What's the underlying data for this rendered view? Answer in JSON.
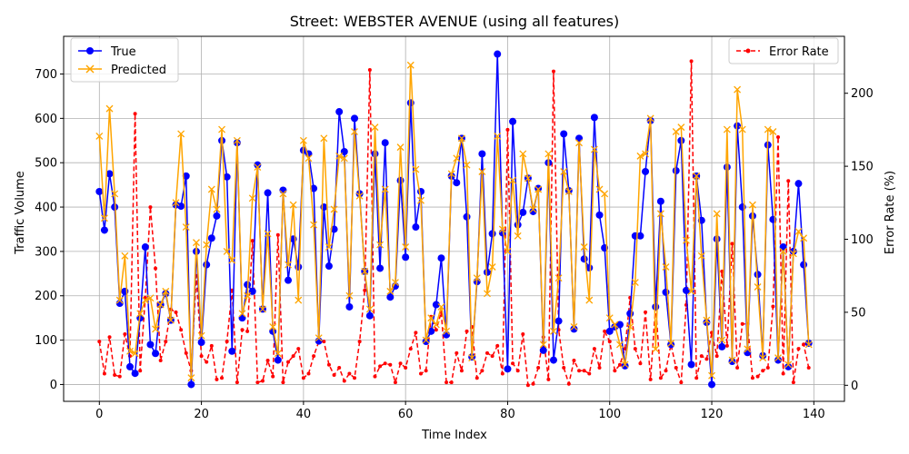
{
  "chart_data": {
    "type": "line",
    "title": "Street: WEBSTER AVENUE (using all features)",
    "xlabel": "Time Index",
    "ylabel": "Traffic Volume",
    "y2label": "Error Rate (%)",
    "xlim": [
      -7,
      146
    ],
    "ylim": [
      -38,
      785
    ],
    "y2lim": [
      -11,
      239
    ],
    "xticks": [
      0,
      20,
      40,
      60,
      80,
      100,
      120,
      140
    ],
    "yticks": [
      0,
      100,
      200,
      300,
      400,
      500,
      600,
      700
    ],
    "y2ticks": [
      0,
      50,
      100,
      150,
      200
    ],
    "grid": true,
    "legend_left": {
      "placement": "upper-left",
      "entries": [
        "True",
        "Predicted"
      ]
    },
    "legend_right": {
      "placement": "upper-right",
      "entries": [
        "Error Rate"
      ]
    },
    "colors": {
      "true": "#0000ff",
      "predicted": "#ffa500",
      "error": "#ff0000"
    },
    "series": [
      {
        "name": "True",
        "axis": "left",
        "marker": "circle",
        "style": "solid",
        "values": [
          435,
          348,
          475,
          400,
          183,
          210,
          40,
          25,
          150,
          310,
          90,
          70,
          180,
          205,
          145,
          405,
          402,
          470,
          0,
          300,
          95,
          270,
          330,
          380,
          550,
          468,
          75,
          545,
          150,
          225,
          210,
          495,
          170,
          432,
          120,
          55,
          438,
          235,
          328,
          265,
          528,
          520,
          442,
          98,
          400,
          267,
          350,
          615,
          525,
          175,
          600,
          430,
          255,
          155,
          520,
          262,
          545,
          197,
          222,
          460,
          287,
          635,
          355,
          435,
          97,
          120,
          180,
          285,
          112,
          470,
          455,
          555,
          378,
          62,
          232,
          520,
          253,
          340,
          745,
          342,
          35,
          593,
          360,
          388,
          465,
          390,
          442,
          77,
          500,
          55,
          143,
          565,
          437,
          125,
          555,
          283,
          263,
          602,
          382,
          308,
          120,
          130,
          135,
          42,
          160,
          335,
          335,
          480,
          595,
          175,
          413,
          208,
          90,
          482,
          550,
          212,
          45,
          470,
          370,
          140,
          0,
          328,
          85,
          490,
          52,
          583,
          400,
          72,
          380,
          248,
          65,
          540,
          372,
          55,
          310,
          40,
          300,
          453,
          270,
          93
        ]
      },
      {
        "name": "Predicted",
        "axis": "left",
        "marker": "x",
        "style": "solid",
        "values": [
          560,
          375,
          622,
          430,
          190,
          290,
          75,
          70,
          160,
          190,
          195,
          125,
          180,
          210,
          145,
          410,
          565,
          355,
          15,
          320,
          110,
          315,
          440,
          395,
          575,
          300,
          280,
          550,
          160,
          200,
          420,
          490,
          170,
          340,
          130,
          70,
          430,
          270,
          405,
          190,
          550,
          510,
          360,
          105,
          555,
          310,
          395,
          515,
          510,
          200,
          570,
          425,
          255,
          170,
          580,
          315,
          440,
          210,
          230,
          535,
          310,
          720,
          485,
          415,
          100,
          150,
          135,
          175,
          120,
          475,
          510,
          555,
          495,
          60,
          240,
          480,
          205,
          265,
          560,
          350,
          300,
          460,
          335,
          520,
          465,
          395,
          440,
          90,
          520,
          120,
          240,
          480,
          435,
          130,
          545,
          310,
          190,
          530,
          440,
          430,
          150,
          135,
          90,
          45,
          130,
          230,
          515,
          520,
          600,
          80,
          385,
          265,
          93,
          570,
          580,
          325,
          210,
          470,
          290,
          145,
          20,
          385,
          100,
          575,
          55,
          665,
          575,
          80,
          405,
          220,
          60,
          575,
          570,
          60,
          300,
          45,
          295,
          345,
          330,
          90
        ]
      },
      {
        "name": "Error Rate",
        "axis": "right",
        "marker": "dot",
        "style": "dashed",
        "values": [
          30,
          8,
          33,
          7,
          6,
          35,
          20,
          186,
          10,
          60,
          122,
          80,
          17,
          30,
          52,
          50,
          38,
          22,
          10,
          75,
          20,
          16,
          27,
          4,
          5,
          30,
          65,
          2,
          38,
          37,
          99,
          2,
          3,
          17,
          6,
          103,
          2,
          16,
          20,
          25,
          5,
          8,
          20,
          30,
          30,
          14,
          7,
          12,
          3,
          8,
          5,
          30,
          65,
          216,
          6,
          13,
          15,
          14,
          2,
          15,
          12,
          25,
          36,
          8,
          10,
          47,
          38,
          50,
          2,
          2,
          22,
          10,
          37,
          40,
          5,
          10,
          22,
          20,
          27,
          8,
          175,
          15,
          10,
          35,
          0,
          1,
          12,
          33,
          4,
          215,
          38,
          12,
          1,
          17,
          10,
          10,
          8,
          25,
          12,
          37,
          30,
          10,
          14,
          25,
          60,
          25,
          15,
          50,
          4,
          55,
          5,
          10,
          28,
          12,
          2,
          55,
          222,
          5,
          20,
          18,
          36,
          20,
          78,
          27,
          97,
          12,
          42,
          42,
          5,
          6,
          10,
          12,
          54,
          170,
          8,
          140,
          2,
          25,
          28,
          12
        ]
      }
    ]
  }
}
